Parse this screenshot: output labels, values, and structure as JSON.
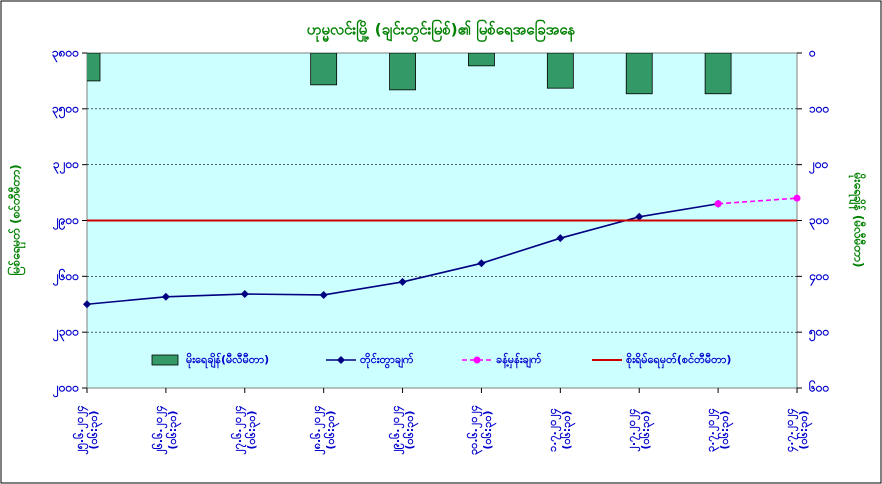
{
  "chart_data": {
    "type": "combo",
    "title": "ဟုမ္မလင်းမြို့ (ချင်းတွင်းမြစ်)၏ မြစ်ရေအခြေအနေ",
    "y_label": "မြစ်ရေမှတ် (စင်တီမီတာ)",
    "y2_label": "မိုးရေချိန် (မီလီမီတာ)",
    "categories": [
      "၂၅.၆.၂၀၂၄\n(၀၆:၃၀)",
      "၂၆.၆.၂၀၂၄\n(၀၆:၃၀)",
      "၂၇.၆.၂၀၂၄\n(၀၆:၃၀)",
      "၂၈.၆.၂၀၂၄\n(၀၆:၃၀)",
      "၂၉.၆.၂၀၂၄\n(၀၆:၃၀)",
      "၃၀.၆.၂၀၂၄\n(၀၆:၃၀)",
      "၁.၇.၂၀၂၄\n(၀၆:၃၀)",
      "၂.၇.၂၀၂၄\n(၀၆:၃၀)",
      "၃.၇.၂၀၂၄\n(၀၆:၃၀)",
      "၄.၇.၂၀၂၄\n(၀၆:၃၀)"
    ],
    "ylim": [
      2000,
      3800
    ],
    "yticks": [
      {
        "value": 2000,
        "label": "၂၀၀၀"
      },
      {
        "value": 2300,
        "label": "၂၃၀၀"
      },
      {
        "value": 2600,
        "label": "၂၆၀၀"
      },
      {
        "value": 2900,
        "label": "၂၉၀၀"
      },
      {
        "value": 3200,
        "label": "၃၂၀၀"
      },
      {
        "value": 3500,
        "label": "၃၅၀၀"
      },
      {
        "value": 3800,
        "label": "၃၈၀၀"
      }
    ],
    "y2lim": [
      0,
      600
    ],
    "y2_inverted": true,
    "y2ticks": [
      {
        "value": 0,
        "label": "၀"
      },
      {
        "value": 100,
        "label": "၁၀၀"
      },
      {
        "value": 200,
        "label": "၂၀၀"
      },
      {
        "value": 300,
        "label": "၃၀၀"
      },
      {
        "value": 400,
        "label": "၄၀၀"
      },
      {
        "value": 500,
        "label": "၅၀၀"
      },
      {
        "value": 600,
        "label": "၆၀၀"
      }
    ],
    "grid": true,
    "series": [
      {
        "name": "မိုးရေချိန်(မီလီမီတာ)",
        "type": "bar",
        "axis": "y2",
        "color": "#339966",
        "values": [
          50,
          0,
          0,
          57,
          66,
          23,
          63,
          73,
          73,
          0
        ]
      },
      {
        "name": "တိုင်းတွာချက်",
        "type": "line",
        "color": "#000080",
        "values": [
          2450,
          2490,
          2505,
          2500,
          2570,
          2670,
          2805,
          2920,
          2990,
          null
        ]
      },
      {
        "name": "ခန့်မှန်းချက်",
        "type": "line",
        "dashed": true,
        "color": "#ff00ff",
        "values": [
          null,
          null,
          null,
          null,
          null,
          null,
          null,
          null,
          2990,
          3020
        ]
      }
    ],
    "danger_level": {
      "name": "စိုးရိမ်ရေမှတ်(စင်တီမီတာ)",
      "value": 2900,
      "color": "#cc0000"
    }
  }
}
